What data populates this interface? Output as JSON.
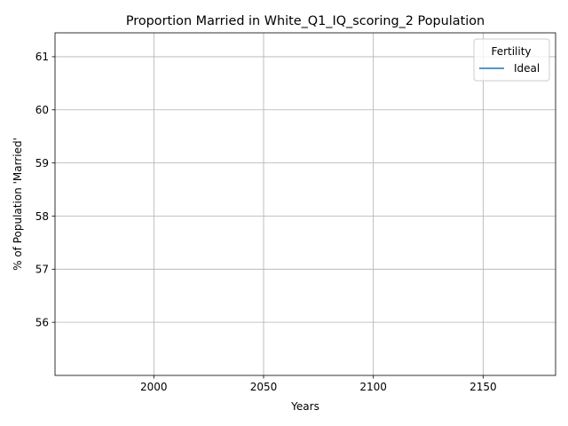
{
  "chart_data": {
    "type": "line",
    "title": "Proportion Married in White_Q1_IQ_scoring_2 Population",
    "xlabel": "Years",
    "ylabel": "% of Population 'Married'",
    "xlim": [
      1955,
      2183
    ],
    "ylim": [
      55.0,
      61.45
    ],
    "x_ticks": [
      2000,
      2050,
      2100,
      2150
    ],
    "y_ticks": [
      56,
      57,
      58,
      59,
      60,
      61
    ],
    "grid": true,
    "legend": {
      "title": "Fertility",
      "placement": "top-right",
      "entries": [
        "Ideal"
      ]
    },
    "series": [
      {
        "name": "Ideal",
        "color": "#1f77b4",
        "x": [],
        "y": []
      }
    ]
  }
}
